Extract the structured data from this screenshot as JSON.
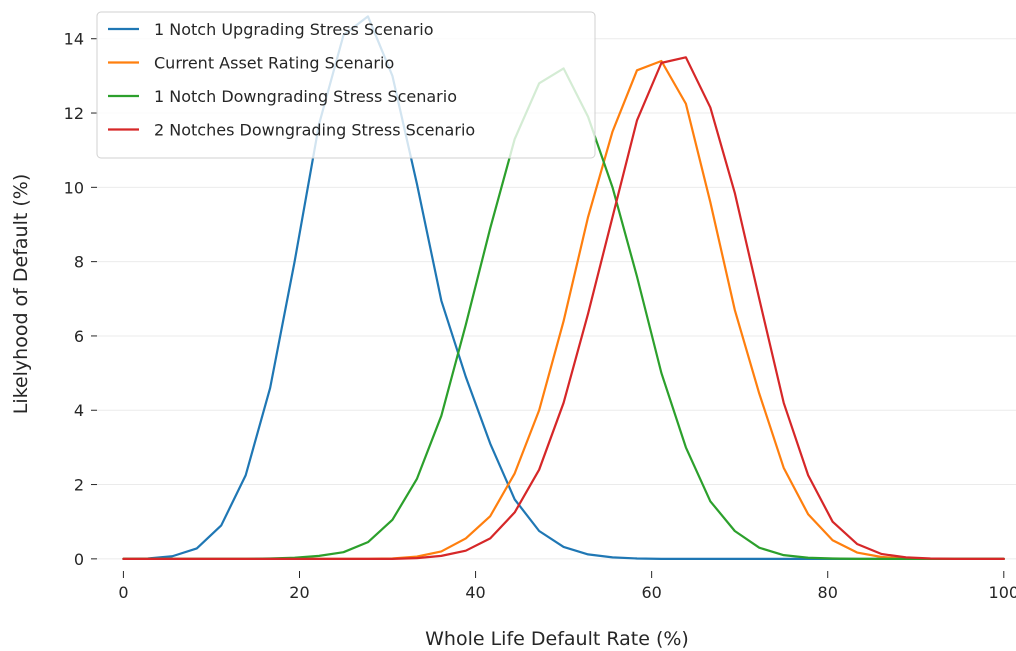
{
  "chart_data": {
    "type": "line",
    "xlabel": "Whole Life Default Rate (%)",
    "ylabel": "Likelyhood of Default (%)",
    "xlim": [
      -3,
      101.5
    ],
    "ylim": [
      -0.3,
      14.8
    ],
    "xticks": [
      0,
      20,
      40,
      60,
      80,
      100
    ],
    "yticks": [
      0,
      2,
      4,
      6,
      8,
      10,
      12,
      14
    ],
    "grid": "horizontal",
    "legend_position": "top-left",
    "x": [
      0,
      2.7778,
      5.5556,
      8.3333,
      11.1111,
      13.8889,
      16.6667,
      19.4444,
      22.2222,
      25.0,
      27.7778,
      30.5556,
      33.3333,
      36.1111,
      38.8889,
      41.6667,
      44.4444,
      47.2222,
      50.0,
      52.7778,
      55.5556,
      58.3333,
      61.1111,
      63.8889,
      66.6667,
      69.4444,
      72.2222,
      75.0,
      77.7778,
      80.5556,
      83.3333,
      86.1111,
      88.8889,
      91.6667,
      94.4444,
      97.2222,
      100.0
    ],
    "series": [
      {
        "name": "1 Notch Upgrading Stress Scenario",
        "color": "#1f77b4",
        "values": [
          0.0,
          0.01,
          0.07,
          0.28,
          0.9,
          2.25,
          4.6,
          8.0,
          11.7,
          14.1,
          14.6,
          13.0,
          10.1,
          6.95,
          4.9,
          3.1,
          1.6,
          0.75,
          0.32,
          0.12,
          0.04,
          0.01,
          0.0,
          0.0,
          0.0,
          0.0,
          0.0,
          0.0,
          0.0,
          0.0,
          0.0,
          0.0,
          0.0,
          0.0,
          0.0,
          0.0,
          0.0
        ]
      },
      {
        "name": "Current Asset Rating Scenario",
        "color": "#ff7f0e",
        "values": [
          0.0,
          0.0,
          0.0,
          0.0,
          0.0,
          0.0,
          0.0,
          0.0,
          0.0,
          0.0,
          0.0,
          0.01,
          0.06,
          0.2,
          0.55,
          1.15,
          2.3,
          4.0,
          6.4,
          9.2,
          11.5,
          13.15,
          13.4,
          12.25,
          9.6,
          6.7,
          4.45,
          2.45,
          1.2,
          0.5,
          0.17,
          0.05,
          0.01,
          0.0,
          0.0,
          0.0,
          0.0
        ]
      },
      {
        "name": "1 Notch Downgrading Stress Scenario",
        "color": "#2ca02c",
        "values": [
          0.0,
          0.0,
          0.0,
          0.0,
          0.0,
          0.0,
          0.01,
          0.03,
          0.08,
          0.18,
          0.45,
          1.05,
          2.15,
          3.85,
          6.3,
          8.9,
          11.3,
          12.8,
          13.2,
          11.9,
          10.0,
          7.6,
          5.0,
          3.0,
          1.55,
          0.75,
          0.3,
          0.1,
          0.03,
          0.01,
          0.0,
          0.0,
          0.0,
          0.0,
          0.0,
          0.0,
          0.0
        ]
      },
      {
        "name": "2 Notches Downgrading Stress Scenario",
        "color": "#d62728",
        "values": [
          0.0,
          0.0,
          0.0,
          0.0,
          0.0,
          0.0,
          0.0,
          0.0,
          0.0,
          0.0,
          0.0,
          0.0,
          0.02,
          0.08,
          0.22,
          0.55,
          1.25,
          2.4,
          4.2,
          6.6,
          9.2,
          11.8,
          13.35,
          13.5,
          12.15,
          9.85,
          7.0,
          4.2,
          2.25,
          1.0,
          0.4,
          0.13,
          0.04,
          0.01,
          0.0,
          0.0,
          0.0
        ]
      }
    ]
  }
}
